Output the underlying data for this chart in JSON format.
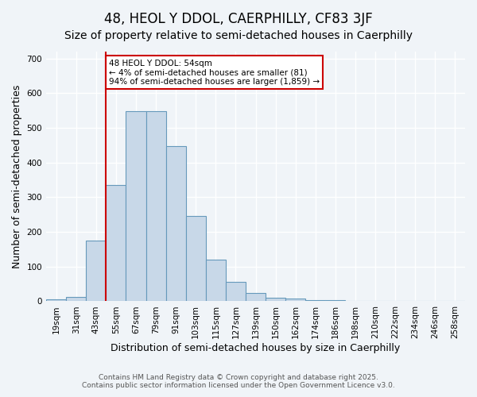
{
  "title1": "48, HEOL Y DDOL, CAERPHILLY, CF83 3JF",
  "title2": "Size of property relative to semi-detached houses in Caerphilly",
  "xlabel": "Distribution of semi-detached houses by size in Caerphilly",
  "ylabel": "Number of semi-detached properties",
  "annotation_line1": "48 HEOL Y DDOL: 54sqm",
  "annotation_line2": "← 4% of semi-detached houses are smaller (81)",
  "annotation_line3": "94% of semi-detached houses are larger (1,859) →",
  "footnote1": "Contains HM Land Registry data © Crown copyright and database right 2025.",
  "footnote2": "Contains public sector information licensed under the Open Government Licence v3.0.",
  "bin_labels": [
    "19sqm",
    "31sqm",
    "43sqm",
    "55sqm",
    "67sqm",
    "79sqm",
    "91sqm",
    "103sqm",
    "115sqm",
    "127sqm",
    "139sqm",
    "150sqm",
    "162sqm",
    "174sqm",
    "186sqm",
    "198sqm",
    "210sqm",
    "222sqm",
    "234sqm",
    "246sqm",
    "258sqm"
  ],
  "bar_values": [
    5,
    12,
    175,
    335,
    548,
    548,
    447,
    245,
    120,
    57,
    25,
    10,
    8,
    4,
    3,
    1,
    0,
    0,
    0,
    0,
    0
  ],
  "bar_color": "#c8d8e8",
  "bar_edge_color": "#6699bb",
  "red_line_x": 3,
  "ylim": [
    0,
    720
  ],
  "yticks": [
    0,
    100,
    200,
    300,
    400,
    500,
    600,
    700
  ],
  "background_color": "#f0f4f8",
  "plot_bg_color": "#f0f4f8",
  "grid_color": "#ffffff",
  "annotation_box_edge": "#cc0000",
  "red_line_color": "#cc0000",
  "title_fontsize": 12,
  "subtitle_fontsize": 10,
  "axis_label_fontsize": 9,
  "tick_fontsize": 7.5,
  "annotation_fontsize": 7.5
}
